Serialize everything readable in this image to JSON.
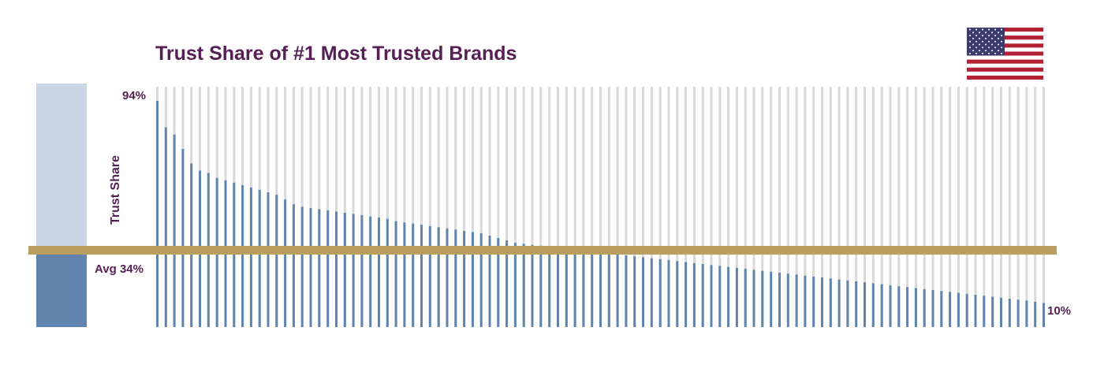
{
  "colors": {
    "title": "#562055",
    "bar": "#6084AD",
    "bar_background": "#D9D9D9",
    "average_line": "#B99E60",
    "side_box_top": "#C9D5E2",
    "side_box_bottom": "#6084AD"
  },
  "icons": {
    "flag": "us-flag-icon"
  },
  "chart_data": {
    "type": "bar",
    "title": "Trust Share of #1 Most Trusted Brands",
    "xlabel": "",
    "ylabel": "Trust Share",
    "ylim": [
      0,
      100
    ],
    "grid": false,
    "max_label": "94%",
    "min_label": "10%",
    "average": {
      "value": 34,
      "label": "Avg 34%"
    },
    "values": [
      94,
      83,
      80,
      74,
      68,
      65,
      64,
      62,
      61,
      60,
      59,
      58,
      57,
      56,
      55,
      53,
      51,
      50,
      49.5,
      49,
      48.5,
      48,
      47.5,
      47,
      46.5,
      46,
      45.5,
      45,
      44,
      43.5,
      43,
      42.5,
      42,
      41.5,
      41,
      40.5,
      40,
      39.5,
      39,
      38,
      37,
      36,
      35,
      34.6,
      34.2,
      33.8,
      33.4,
      33,
      32.6,
      32.2,
      31.8,
      31.4,
      31,
      30.6,
      30.2,
      29.8,
      29.4,
      29,
      28.6,
      28.2,
      27.8,
      27.4,
      27,
      26.6,
      26.2,
      25.8,
      25.4,
      25,
      24.6,
      24.2,
      23.8,
      23.4,
      23,
      22.6,
      22.2,
      21.8,
      21.4,
      21,
      20.6,
      20.2,
      19.8,
      19.4,
      19,
      18.6,
      18.2,
      17.8,
      17.4,
      17,
      16.6,
      16.2,
      15.8,
      15.4,
      15,
      14.6,
      14.2,
      13.8,
      13.4,
      13,
      12.6,
      12.2,
      11.8,
      11.4,
      11,
      10.5,
      10
    ]
  }
}
